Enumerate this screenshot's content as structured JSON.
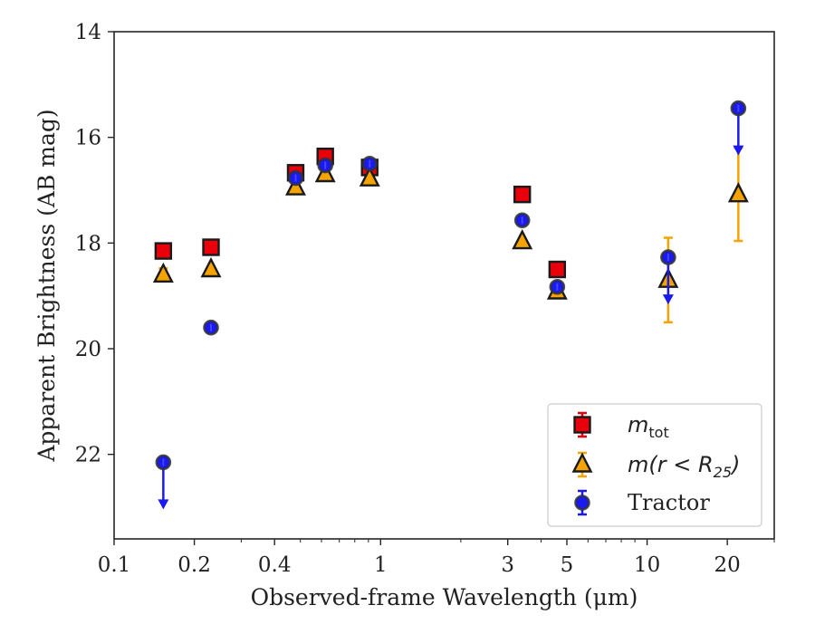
{
  "chart_data": {
    "type": "scatter",
    "title": "",
    "xlabel": "Observed-frame Wavelength (μm)",
    "ylabel": "Apparent Brightness (AB mag)",
    "xscale": "log",
    "xlim": [
      0.1,
      30
    ],
    "ylim": [
      23.6,
      14
    ],
    "y_inverted": true,
    "grid": false,
    "legend_placement": "lower right",
    "xticks": [
      {
        "value": 0.1,
        "label": "0.1"
      },
      {
        "value": 0.2,
        "label": "0.2"
      },
      {
        "value": 0.4,
        "label": "0.4"
      },
      {
        "value": 1,
        "label": "1"
      },
      {
        "value": 3,
        "label": "3"
      },
      {
        "value": 5,
        "label": "5"
      },
      {
        "value": 10,
        "label": "10"
      },
      {
        "value": 20,
        "label": "20"
      }
    ],
    "yticks": [
      {
        "value": 14,
        "label": "14"
      },
      {
        "value": 16,
        "label": "16"
      },
      {
        "value": 18,
        "label": "18"
      },
      {
        "value": 20,
        "label": "20"
      },
      {
        "value": 22,
        "label": "22"
      }
    ],
    "series": [
      {
        "name": "m_tot",
        "legend_main": "m",
        "legend_sub": "tot",
        "marker": "square",
        "color": "#e8000b",
        "points": [
          {
            "x": 0.153,
            "y": 18.15,
            "err": 0
          },
          {
            "x": 0.231,
            "y": 18.08,
            "err": 0
          },
          {
            "x": 0.48,
            "y": 16.67,
            "err": 0.12
          },
          {
            "x": 0.62,
            "y": 16.36,
            "err": 0.1
          },
          {
            "x": 0.91,
            "y": 16.57,
            "err": 0.1
          },
          {
            "x": 3.4,
            "y": 17.08,
            "err": 0
          },
          {
            "x": 4.6,
            "y": 18.5,
            "err": 0
          }
        ]
      },
      {
        "name": "m(r < R25)",
        "legend_main": "m(r < R",
        "legend_sub": "25",
        "legend_tail": ")",
        "marker": "triangle",
        "color": "#f5a300",
        "points": [
          {
            "x": 0.153,
            "y": 18.6,
            "err": 0.12
          },
          {
            "x": 0.231,
            "y": 18.5,
            "err": 0
          },
          {
            "x": 0.48,
            "y": 16.95,
            "err": 0
          },
          {
            "x": 0.62,
            "y": 16.7,
            "err": 0
          },
          {
            "x": 0.91,
            "y": 16.78,
            "err": 0
          },
          {
            "x": 3.4,
            "y": 17.97,
            "err": 0
          },
          {
            "x": 4.6,
            "y": 18.92,
            "err": 0
          },
          {
            "x": 12.0,
            "y": 18.7,
            "err": 0.8
          },
          {
            "x": 22.0,
            "y": 17.08,
            "err": 0.88
          }
        ]
      },
      {
        "name": "Tractor",
        "legend_main": "Tractor",
        "marker": "circle",
        "color": "#1a1aee",
        "points": [
          {
            "x": 0.153,
            "y": 22.15,
            "upper_limit": true
          },
          {
            "x": 0.231,
            "y": 19.6
          },
          {
            "x": 0.48,
            "y": 16.77
          },
          {
            "x": 0.62,
            "y": 16.53
          },
          {
            "x": 0.91,
            "y": 16.5
          },
          {
            "x": 3.4,
            "y": 17.57
          },
          {
            "x": 4.6,
            "y": 18.83
          },
          {
            "x": 12.0,
            "y": 18.27,
            "upper_limit": true
          },
          {
            "x": 22.0,
            "y": 15.45,
            "upper_limit": true
          }
        ]
      }
    ]
  }
}
